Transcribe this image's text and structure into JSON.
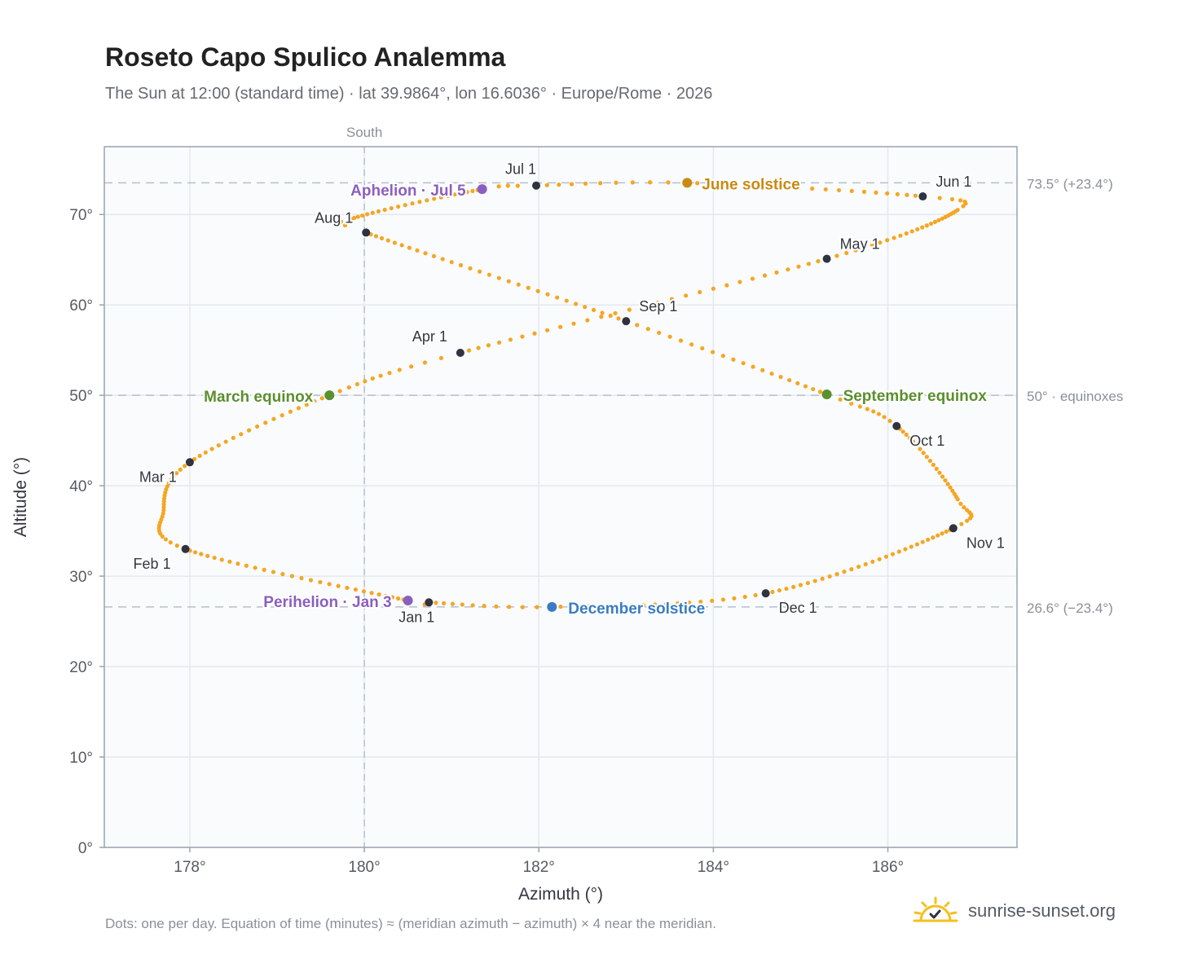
{
  "title": "Roseto Capo Spulico Analemma",
  "subtitle": "The Sun at 12:00 (standard time) · lat 39.9864°, lon 16.6036° · Europe/Rome · 2026",
  "footer_note": "Dots: one per day. Equation of time (minutes) ≈ (meridian azimuth − azimuth) × 4 near the meridian.",
  "brand": "sunrise-sunset.org",
  "colors": {
    "curve": "#f5a623",
    "month_marker": "#2f3340",
    "june_solstice": "#c98a12",
    "december_solstice": "#3a7cc4",
    "equinox": "#5a8f2e",
    "apsis": "#8b5fbf",
    "grid": "#e4e8ee",
    "reference_line": "#b6c0cc",
    "axis_text": "#555a63"
  },
  "chart_data": {
    "type": "scatter",
    "title": "Roseto Capo Spulico Analemma",
    "xlabel": "Azimuth (°)",
    "ylabel": "Altitude (°)",
    "xlim": [
      177.02,
      187.48
    ],
    "ylim": [
      0,
      77.5
    ],
    "x_ticks": [
      "178°",
      "180°",
      "182°",
      "184°",
      "186°"
    ],
    "x_tick_values": [
      178,
      180,
      182,
      184,
      186
    ],
    "y_ticks": [
      "0°",
      "10°",
      "20°",
      "30°",
      "40°",
      "50°",
      "60°",
      "70°"
    ],
    "y_tick_values": [
      0,
      10,
      20,
      30,
      40,
      50,
      60,
      70
    ],
    "grid": true,
    "south_label": "South",
    "south_azimuth": 180,
    "reference_lines": [
      {
        "altitude": 73.5,
        "label": "73.5° (+23.4°)"
      },
      {
        "altitude": 50,
        "label": "50° · equinoxes"
      },
      {
        "altitude": 26.6,
        "label": "26.6° (−23.4°)"
      }
    ],
    "analemma_keypoints": [
      {
        "day": 1,
        "az": 180.74,
        "alt": 27.1
      },
      {
        "day": 3,
        "az": 180.5,
        "alt": 27.3
      },
      {
        "day": 32,
        "az": 177.95,
        "alt": 33.0
      },
      {
        "day": 45,
        "az": 177.7,
        "alt": 37.3
      },
      {
        "day": 60,
        "az": 178.0,
        "alt": 42.6
      },
      {
        "day": 79,
        "az": 179.6,
        "alt": 50.0
      },
      {
        "day": 91,
        "az": 181.1,
        "alt": 54.7
      },
      {
        "day": 121,
        "az": 185.3,
        "alt": 65.1
      },
      {
        "day": 145,
        "az": 186.8,
        "alt": 70.5
      },
      {
        "day": 152,
        "az": 186.4,
        "alt": 72.0
      },
      {
        "day": 172,
        "az": 183.7,
        "alt": 73.5
      },
      {
        "day": 182,
        "az": 181.97,
        "alt": 73.2
      },
      {
        "day": 186,
        "az": 181.35,
        "alt": 72.8
      },
      {
        "day": 208,
        "az": 179.85,
        "alt": 69.5
      },
      {
        "day": 213,
        "az": 180.02,
        "alt": 68.0
      },
      {
        "day": 244,
        "az": 183.0,
        "alt": 58.2
      },
      {
        "day": 265,
        "az": 185.3,
        "alt": 50.1
      },
      {
        "day": 274,
        "az": 186.1,
        "alt": 46.6
      },
      {
        "day": 295,
        "az": 186.8,
        "alt": 38.5
      },
      {
        "day": 305,
        "az": 186.75,
        "alt": 35.3
      },
      {
        "day": 335,
        "az": 184.6,
        "alt": 28.1
      },
      {
        "day": 355,
        "az": 182.15,
        "alt": 26.6
      },
      {
        "day": 366,
        "az": 180.74,
        "alt": 27.1
      }
    ],
    "month_markers": [
      {
        "label": "Jan 1",
        "az": 180.74,
        "alt": 27.1
      },
      {
        "label": "Feb 1",
        "az": 177.95,
        "alt": 33.0
      },
      {
        "label": "Mar 1",
        "az": 178.0,
        "alt": 42.6
      },
      {
        "label": "Apr 1",
        "az": 181.1,
        "alt": 54.7
      },
      {
        "label": "May 1",
        "az": 185.3,
        "alt": 65.1
      },
      {
        "label": "Jun 1",
        "az": 186.4,
        "alt": 72.0
      },
      {
        "label": "Jul 1",
        "az": 181.97,
        "alt": 73.2
      },
      {
        "label": "Aug 1",
        "az": 180.02,
        "alt": 68.0
      },
      {
        "label": "Sep 1",
        "az": 183.0,
        "alt": 58.2
      },
      {
        "label": "Oct 1",
        "az": 186.1,
        "alt": 46.6
      },
      {
        "label": "Nov 1",
        "az": 186.75,
        "alt": 35.3
      },
      {
        "label": "Dec 1",
        "az": 184.6,
        "alt": 28.1
      }
    ],
    "events": [
      {
        "label": "June solstice",
        "az": 183.7,
        "alt": 73.5,
        "kind": "june_solstice"
      },
      {
        "label": "December solstice",
        "az": 182.15,
        "alt": 26.6,
        "kind": "december_solstice"
      },
      {
        "label": "March equinox",
        "az": 179.6,
        "alt": 50.0,
        "kind": "equinox"
      },
      {
        "label": "September equinox",
        "az": 185.3,
        "alt": 50.1,
        "kind": "equinox"
      },
      {
        "label": "Aphelion · Jul 5",
        "az": 181.35,
        "alt": 72.8,
        "kind": "apsis"
      },
      {
        "label": "Perihelion · Jan 3",
        "az": 180.5,
        "alt": 27.3,
        "kind": "apsis"
      }
    ]
  }
}
